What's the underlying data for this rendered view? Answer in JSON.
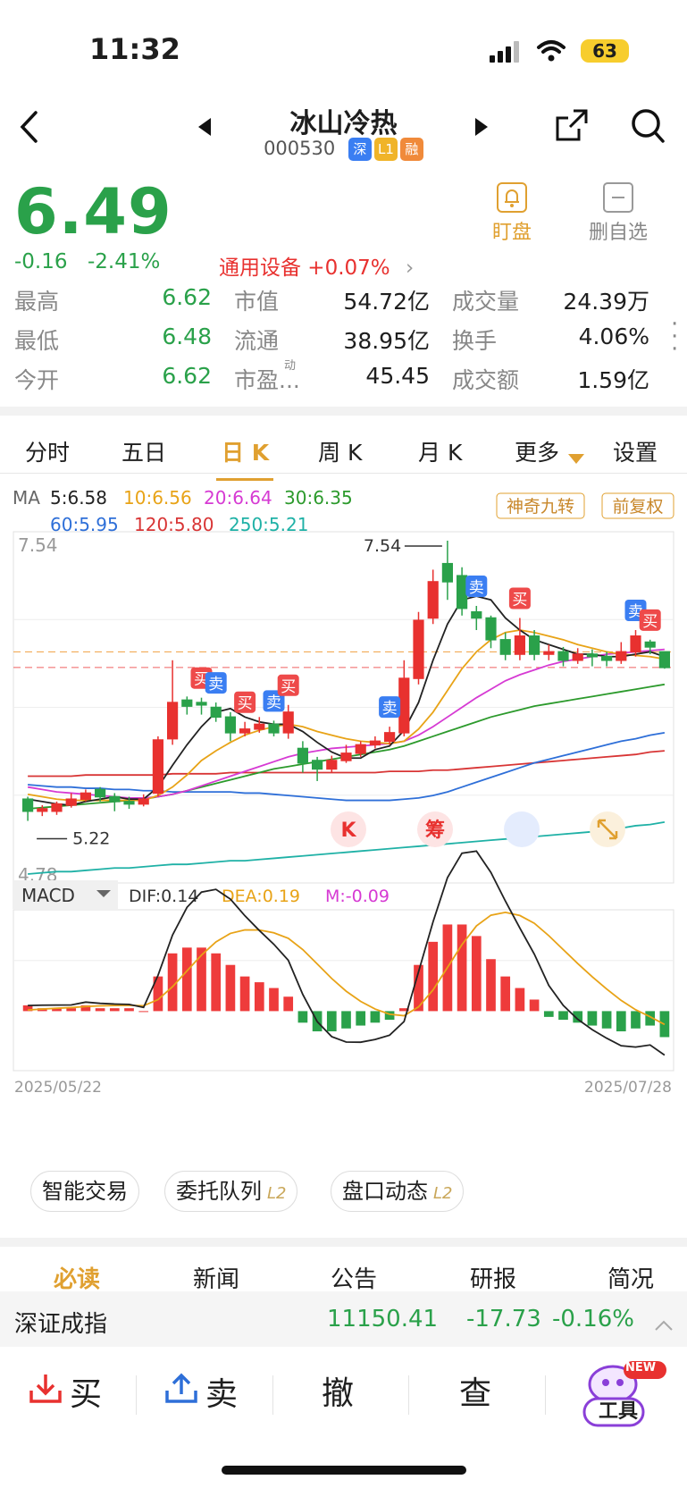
{
  "status": {
    "time": "11:32",
    "battery": "63"
  },
  "stock": {
    "name": "冰山冷热",
    "code": "000530",
    "tags": [
      "深",
      "L1",
      "融"
    ],
    "price": "6.49",
    "change": "-0.16",
    "change_pct": "-2.41%",
    "sector": "通用设备 +0.07%",
    "actions": [
      {
        "label": "盯盘",
        "icon": "bell-icon"
      },
      {
        "label": "删自选",
        "icon": "minus-box-icon"
      }
    ]
  },
  "stats": [
    [
      {
        "label": "最高",
        "value": "6.62",
        "color": "green"
      },
      {
        "label": "市值",
        "value": "54.72亿"
      },
      {
        "label": "成交量",
        "value": "24.39万"
      }
    ],
    [
      {
        "label": "最低",
        "value": "6.48",
        "color": "green"
      },
      {
        "label": "流通",
        "value": "38.95亿"
      },
      {
        "label": "换手",
        "value": "4.06%"
      }
    ],
    [
      {
        "label": "今开",
        "value": "6.62",
        "color": "green"
      },
      {
        "label": "市盈...",
        "sup": "动",
        "value": "45.45"
      },
      {
        "label": "成交额",
        "value": "1.59亿"
      }
    ]
  ],
  "tabs": [
    "分时",
    "五日",
    "日 K",
    "周 K",
    "月 K",
    "更多",
    "设置"
  ],
  "active_tab": "日 K",
  "ma": {
    "label": "MA",
    "items": [
      {
        "text": "5:6.58",
        "color": "#222222"
      },
      {
        "text": "10:6.56",
        "color": "#e8a317"
      },
      {
        "text": "20:6.64",
        "color": "#d63ad3"
      },
      {
        "text": "30:6.35",
        "color": "#2c9a2c"
      },
      {
        "text": "60:5.95",
        "color": "#2e6fd8"
      },
      {
        "text": "120:5.80",
        "color": "#d83535"
      },
      {
        "text": "250:5.21",
        "color": "#1fb1a6"
      }
    ],
    "buttons": [
      "神奇九转",
      "前复权"
    ]
  },
  "chart_data": {
    "type": "candlestick",
    "price_axis": {
      "top": "7.54",
      "bottom": "4.78"
    },
    "annotations": {
      "high": "7.54",
      "low": "5.22"
    },
    "date_range": [
      "2025/05/22",
      "2025/07/28"
    ],
    "candles": [
      [
        5.4,
        5.3,
        5.42,
        5.22
      ],
      [
        5.3,
        5.32,
        5.35,
        5.26
      ],
      [
        5.3,
        5.36,
        5.38,
        5.27
      ],
      [
        5.35,
        5.4,
        5.45,
        5.33
      ],
      [
        5.4,
        5.45,
        5.48,
        5.38
      ],
      [
        5.48,
        5.42,
        5.5,
        5.38
      ],
      [
        5.42,
        5.38,
        5.45,
        5.3
      ],
      [
        5.38,
        5.36,
        5.42,
        5.32
      ],
      [
        5.36,
        5.4,
        5.44,
        5.34
      ],
      [
        5.45,
        5.89,
        5.92,
        5.42
      ],
      [
        5.9,
        6.2,
        6.55,
        5.85
      ],
      [
        6.22,
        6.17,
        6.25,
        6.1
      ],
      [
        6.2,
        6.18,
        6.24,
        6.1
      ],
      [
        6.16,
        6.08,
        6.2,
        6.04
      ],
      [
        6.08,
        5.95,
        6.12,
        5.88
      ],
      [
        5.95,
        5.98,
        6.04,
        5.92
      ],
      [
        5.98,
        6.02,
        6.08,
        5.95
      ],
      [
        6.02,
        5.95,
        6.05,
        5.92
      ],
      [
        5.95,
        6.12,
        6.18,
        5.9
      ],
      [
        5.82,
        5.7,
        5.88,
        5.62
      ],
      [
        5.72,
        5.65,
        5.75,
        5.55
      ],
      [
        5.65,
        5.72,
        5.76,
        5.62
      ],
      [
        5.72,
        5.78,
        5.85,
        5.7
      ],
      [
        5.78,
        5.85,
        5.88,
        5.75
      ],
      [
        5.85,
        5.88,
        5.92,
        5.82
      ],
      [
        5.88,
        5.95,
        6.0,
        5.85
      ],
      [
        5.95,
        6.4,
        6.55,
        5.92
      ],
      [
        6.4,
        6.88,
        6.95,
        6.35
      ],
      [
        6.9,
        7.2,
        7.3,
        6.85
      ],
      [
        7.35,
        7.2,
        7.54,
        7.05
      ],
      [
        7.25,
        6.98,
        7.32,
        6.92
      ],
      [
        6.95,
        6.9,
        7.0,
        6.8
      ],
      [
        6.9,
        6.72,
        6.92,
        6.65
      ],
      [
        6.72,
        6.6,
        6.78,
        6.55
      ],
      [
        6.6,
        6.75,
        6.9,
        6.55
      ],
      [
        6.75,
        6.6,
        6.8,
        6.55
      ],
      [
        6.6,
        6.62,
        6.68,
        6.55
      ],
      [
        6.62,
        6.55,
        6.66,
        6.5
      ],
      [
        6.55,
        6.6,
        6.65,
        6.52
      ],
      [
        6.6,
        6.58,
        6.64,
        6.5
      ],
      [
        6.58,
        6.55,
        6.62,
        6.5
      ],
      [
        6.55,
        6.62,
        6.7,
        6.52
      ],
      [
        6.62,
        6.75,
        6.8,
        6.58
      ],
      [
        6.7,
        6.66,
        6.72,
        6.6
      ],
      [
        6.62,
        6.49,
        6.62,
        6.48
      ]
    ],
    "ma5": [
      5.4,
      5.38,
      5.36,
      5.35,
      5.38,
      5.4,
      5.42,
      5.4,
      5.4,
      5.5,
      5.68,
      5.85,
      6.0,
      6.12,
      6.15,
      6.08,
      6.04,
      6.02,
      6.02,
      5.96,
      5.87,
      5.79,
      5.74,
      5.74,
      5.81,
      5.84,
      5.97,
      6.2,
      6.55,
      6.85,
      7.05,
      7.08,
      7.05,
      6.9,
      6.8,
      6.72,
      6.68,
      6.64,
      6.6,
      6.6,
      6.58,
      6.58,
      6.6,
      6.62,
      6.58
    ],
    "ma10": [
      5.44,
      5.42,
      5.4,
      5.39,
      5.39,
      5.39,
      5.39,
      5.39,
      5.39,
      5.43,
      5.5,
      5.6,
      5.72,
      5.8,
      5.87,
      5.93,
      5.97,
      6.0,
      6.02,
      6.0,
      5.96,
      5.93,
      5.9,
      5.88,
      5.87,
      5.86,
      5.88,
      5.98,
      6.12,
      6.3,
      6.48,
      6.62,
      6.72,
      6.78,
      6.8,
      6.78,
      6.75,
      6.72,
      6.68,
      6.65,
      6.62,
      6.6,
      6.59,
      6.58,
      6.56
    ],
    "ma20": [
      5.5,
      5.48,
      5.46,
      5.45,
      5.44,
      5.43,
      5.42,
      5.41,
      5.41,
      5.42,
      5.44,
      5.47,
      5.51,
      5.55,
      5.59,
      5.63,
      5.67,
      5.71,
      5.75,
      5.78,
      5.8,
      5.82,
      5.83,
      5.84,
      5.85,
      5.86,
      5.88,
      5.93,
      6.0,
      6.08,
      6.16,
      6.24,
      6.31,
      6.38,
      6.43,
      6.47,
      6.51,
      6.54,
      6.56,
      6.58,
      6.6,
      6.61,
      6.62,
      6.63,
      6.64
    ],
    "ma30": [
      5.32,
      5.33,
      5.34,
      5.35,
      5.36,
      5.37,
      5.38,
      5.39,
      5.4,
      5.42,
      5.44,
      5.47,
      5.5,
      5.53,
      5.56,
      5.59,
      5.62,
      5.65,
      5.67,
      5.69,
      5.71,
      5.73,
      5.75,
      5.77,
      5.79,
      5.81,
      5.84,
      5.88,
      5.92,
      5.96,
      6.0,
      6.04,
      6.08,
      6.11,
      6.14,
      6.17,
      6.19,
      6.21,
      6.23,
      6.25,
      6.27,
      6.29,
      6.31,
      6.33,
      6.35
    ],
    "ma60": [
      5.52,
      5.51,
      5.5,
      5.5,
      5.49,
      5.49,
      5.48,
      5.48,
      5.47,
      5.47,
      5.46,
      5.46,
      5.46,
      5.46,
      5.46,
      5.45,
      5.45,
      5.44,
      5.43,
      5.42,
      5.41,
      5.4,
      5.39,
      5.39,
      5.39,
      5.39,
      5.4,
      5.41,
      5.43,
      5.46,
      5.5,
      5.54,
      5.58,
      5.62,
      5.66,
      5.7,
      5.73,
      5.76,
      5.79,
      5.82,
      5.85,
      5.88,
      5.9,
      5.93,
      5.95
    ],
    "ma120": [
      5.59,
      5.59,
      5.59,
      5.59,
      5.6,
      5.6,
      5.6,
      5.6,
      5.6,
      5.6,
      5.61,
      5.61,
      5.61,
      5.61,
      5.62,
      5.62,
      5.62,
      5.62,
      5.62,
      5.62,
      5.62,
      5.62,
      5.62,
      5.62,
      5.62,
      5.63,
      5.63,
      5.63,
      5.64,
      5.64,
      5.65,
      5.66,
      5.67,
      5.68,
      5.69,
      5.7,
      5.71,
      5.72,
      5.73,
      5.74,
      5.75,
      5.76,
      5.77,
      5.79,
      5.8
    ],
    "ma250": [
      4.78,
      4.79,
      4.8,
      4.8,
      4.81,
      4.82,
      4.83,
      4.83,
      4.84,
      4.85,
      4.86,
      4.86,
      4.87,
      4.88,
      4.89,
      4.89,
      4.9,
      4.91,
      4.92,
      4.93,
      4.94,
      4.95,
      4.96,
      4.97,
      4.98,
      4.99,
      5.0,
      5.01,
      5.02,
      5.03,
      5.04,
      5.05,
      5.06,
      5.07,
      5.08,
      5.09,
      5.1,
      5.11,
      5.12,
      5.13,
      5.15,
      5.16,
      5.18,
      5.19,
      5.21
    ],
    "macd": {
      "label": "MACD",
      "dif_text": "DIF:0.14",
      "dea_text": "DEA:0.19",
      "m_text": "M:-0.09",
      "hist": [
        0.02,
        0.01,
        0.01,
        0.01,
        0.02,
        0.01,
        0.01,
        0.01,
        0.0,
        0.12,
        0.2,
        0.22,
        0.22,
        0.2,
        0.16,
        0.12,
        0.1,
        0.08,
        0.05,
        -0.04,
        -0.07,
        -0.07,
        -0.06,
        -0.05,
        -0.04,
        -0.03,
        0.01,
        0.16,
        0.24,
        0.3,
        0.3,
        0.26,
        0.18,
        0.12,
        0.08,
        0.04,
        -0.02,
        -0.03,
        -0.04,
        -0.05,
        -0.06,
        -0.07,
        -0.06,
        -0.05,
        -0.09
      ]
    }
  },
  "signals": [
    {
      "label": "买",
      "type": "buy"
    },
    {
      "label": "卖",
      "type": "sell"
    }
  ],
  "bottom_icons": [
    "K",
    "筹"
  ],
  "tools": [
    "智能交易",
    "委托队列",
    "盘口动态"
  ],
  "tools_badge": "L2",
  "news_tabs": [
    "必读",
    "新闻",
    "公告",
    "研报",
    "简况"
  ],
  "index": {
    "name": "深证成指",
    "value": "11150.41",
    "change": "-17.73",
    "change_pct": "-0.16%"
  },
  "bottom": {
    "buy": "买",
    "sell": "卖",
    "cancel": "撤",
    "query": "查",
    "tool": "工具",
    "new_badge": "NEW"
  }
}
